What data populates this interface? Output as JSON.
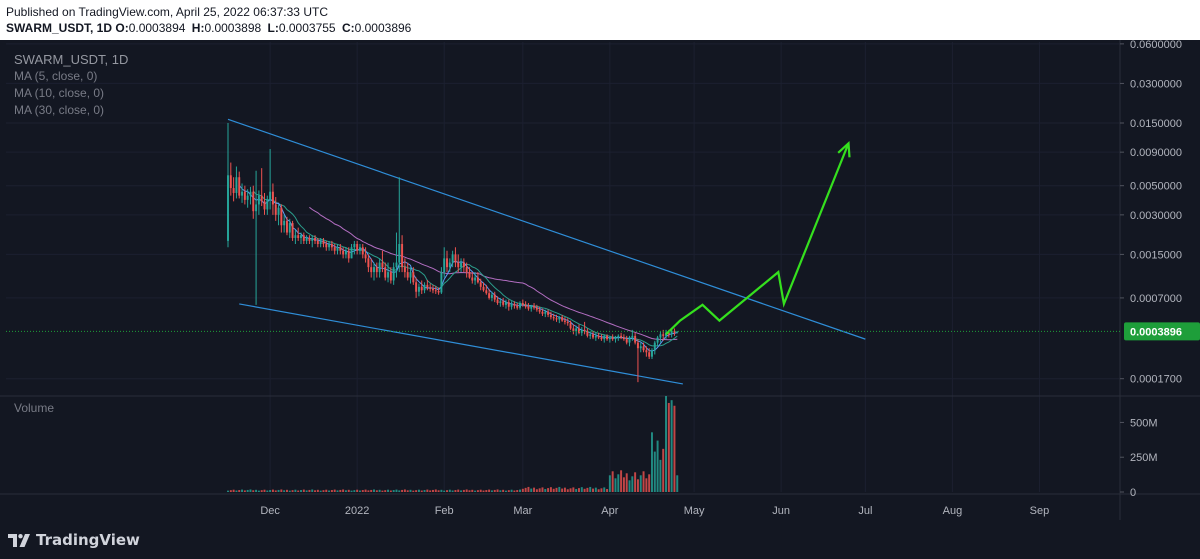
{
  "header": {
    "published": "Published on TradingView.com, April 25, 2022 06:37:33 UTC",
    "symbol": "SWARM_USDT, 1D",
    "o_label": "O:",
    "o": "0.0003894",
    "h_label": "H:",
    "h": "0.0003898",
    "l_label": "L:",
    "l": "0.0003755",
    "c_label": "C:",
    "c": "0.0003896"
  },
  "legend": {
    "title": "SWARM_USDT, 1D",
    "ma1": "MA (5, close, 0)",
    "ma2": "MA (10, close, 0)",
    "ma3": "MA (30, close, 0)",
    "volume": "Volume"
  },
  "footer": {
    "brand": "TradingView"
  },
  "colors": {
    "up": "#26a69a",
    "down": "#ef5350",
    "ma5": "#5b9cf6",
    "ma10": "#2b9e8c",
    "ma30": "#b36ec2",
    "trendline": "#2f8ed8",
    "projection": "#35e01e",
    "price_tag": "#1e9e3a"
  },
  "chart_data": {
    "type": "candlestick",
    "price_axis": {
      "scale": "log",
      "ticks": [
        "0.0600000",
        "0.0300000",
        "0.0150000",
        "0.0090000",
        "0.0050000",
        "0.0030000",
        "0.0015000",
        "0.0007000",
        "0.0003896",
        "0.0001700"
      ],
      "range": [
        0.00013,
        0.062
      ]
    },
    "time_axis": {
      "ticks": [
        "Dec",
        "2022",
        "Feb",
        "Mar",
        "Apr",
        "May",
        "Jun",
        "Jul",
        "Aug",
        "Sep"
      ],
      "range": [
        "2021-11-16",
        "2022-09-19"
      ]
    },
    "volume_axis": {
      "ticks": [
        "500M",
        "250M",
        "0"
      ],
      "max": 690
    },
    "last_price": "0.0003896",
    "candles": [
      [
        "2021-11-16",
        0.0019,
        0.015,
        0.0017,
        0.006
      ],
      [
        "2021-11-17",
        0.006,
        0.0075,
        0.0042,
        0.0048
      ],
      [
        "2021-11-18",
        0.0048,
        0.0058,
        0.0038,
        0.0044
      ],
      [
        "2021-11-19",
        0.0044,
        0.007,
        0.004,
        0.0058
      ],
      [
        "2021-11-20",
        0.0058,
        0.0064,
        0.004,
        0.0042
      ],
      [
        "2021-11-21",
        0.0042,
        0.0052,
        0.0037,
        0.0045
      ],
      [
        "2021-11-22",
        0.0045,
        0.005,
        0.0036,
        0.0039
      ],
      [
        "2021-11-23",
        0.0039,
        0.0047,
        0.0034,
        0.0042
      ],
      [
        "2021-11-24",
        0.0042,
        0.0049,
        0.0036,
        0.0045
      ],
      [
        "2021-11-25",
        0.0045,
        0.005,
        0.0028,
        0.0032
      ],
      [
        "2021-11-26",
        0.0032,
        0.0065,
        0.00062,
        0.0036
      ],
      [
        "2021-11-27",
        0.0036,
        0.0046,
        0.003,
        0.0042
      ],
      [
        "2021-11-28",
        0.0042,
        0.0068,
        0.0035,
        0.0038
      ],
      [
        "2021-11-29",
        0.0038,
        0.0044,
        0.003,
        0.0033
      ],
      [
        "2021-11-30",
        0.0033,
        0.0042,
        0.003,
        0.0039
      ],
      [
        "2021-12-01",
        0.0039,
        0.0095,
        0.0033,
        0.0045
      ],
      [
        "2021-12-02",
        0.0045,
        0.0052,
        0.003,
        0.0036
      ],
      [
        "2021-12-03",
        0.0036,
        0.0041,
        0.0027,
        0.003
      ],
      [
        "2021-12-04",
        0.003,
        0.0036,
        0.0025,
        0.0034
      ],
      [
        "2021-12-05",
        0.0034,
        0.0036,
        0.0022,
        0.0025
      ],
      [
        "2021-12-06",
        0.0025,
        0.003,
        0.0022,
        0.0027
      ],
      [
        "2021-12-07",
        0.0027,
        0.0029,
        0.0021,
        0.0022
      ],
      [
        "2021-12-08",
        0.0022,
        0.0028,
        0.002,
        0.0026
      ],
      [
        "2021-12-09",
        0.0026,
        0.0027,
        0.0019,
        0.002
      ],
      [
        "2021-12-10",
        0.002,
        0.0023,
        0.0018,
        0.0021
      ],
      [
        "2021-12-11",
        0.0021,
        0.0024,
        0.0019,
        0.002
      ],
      [
        "2021-12-12",
        0.002,
        0.0022,
        0.0018,
        0.0021
      ],
      [
        "2021-12-13",
        0.0021,
        0.0022,
        0.0018,
        0.0019
      ],
      [
        "2021-12-14",
        0.0019,
        0.0021,
        0.0018,
        0.002
      ],
      [
        "2021-12-15",
        0.002,
        0.0021,
        0.0018,
        0.0019
      ],
      [
        "2021-12-16",
        0.0019,
        0.0021,
        0.0017,
        0.002
      ],
      [
        "2021-12-17",
        0.002,
        0.0021,
        0.0018,
        0.0019
      ],
      [
        "2021-12-18",
        0.0019,
        0.002,
        0.0017,
        0.0018
      ],
      [
        "2021-12-19",
        0.0018,
        0.002,
        0.0017,
        0.0019
      ],
      [
        "2021-12-20",
        0.0019,
        0.002,
        0.0017,
        0.0018
      ],
      [
        "2021-12-21",
        0.0018,
        0.0019,
        0.0016,
        0.0017
      ],
      [
        "2021-12-22",
        0.0017,
        0.0019,
        0.0016,
        0.0018
      ],
      [
        "2021-12-23",
        0.0018,
        0.0019,
        0.0016,
        0.0017
      ],
      [
        "2021-12-24",
        0.0017,
        0.0018,
        0.0015,
        0.0016
      ],
      [
        "2021-12-25",
        0.0016,
        0.0018,
        0.0015,
        0.0017
      ],
      [
        "2021-12-26",
        0.0017,
        0.0018,
        0.0015,
        0.0016
      ],
      [
        "2021-12-27",
        0.0016,
        0.0017,
        0.0014,
        0.0015
      ],
      [
        "2021-12-28",
        0.0015,
        0.0017,
        0.0014,
        0.0016
      ],
      [
        "2021-12-29",
        0.0016,
        0.0017,
        0.0013,
        0.0014
      ],
      [
        "2021-12-30",
        0.0014,
        0.0018,
        0.0014,
        0.0017
      ],
      [
        "2021-12-31",
        0.0017,
        0.0019,
        0.0015,
        0.0018
      ],
      [
        "2022-01-01",
        0.0018,
        0.0019,
        0.0015,
        0.0016
      ],
      [
        "2022-01-02",
        0.0016,
        0.0018,
        0.0015,
        0.0017
      ],
      [
        "2022-01-03",
        0.0017,
        0.0018,
        0.0014,
        0.0015
      ],
      [
        "2022-01-04",
        0.0015,
        0.0017,
        0.0013,
        0.0014
      ],
      [
        "2022-01-05",
        0.0014,
        0.0015,
        0.0011,
        0.0012
      ],
      [
        "2022-01-06",
        0.0012,
        0.0014,
        0.001,
        0.0011
      ],
      [
        "2022-01-07",
        0.0011,
        0.0013,
        0.00095,
        0.0012
      ],
      [
        "2022-01-08",
        0.0012,
        0.0013,
        0.001,
        0.0011
      ],
      [
        "2022-01-09",
        0.0011,
        0.0014,
        0.001,
        0.0013
      ],
      [
        "2022-01-10",
        0.0013,
        0.0016,
        0.0011,
        0.0012
      ],
      [
        "2022-01-11",
        0.0012,
        0.0013,
        0.00095,
        0.001
      ],
      [
        "2022-01-12",
        0.001,
        0.0013,
        0.00092,
        0.0011
      ],
      [
        "2022-01-13",
        0.0011,
        0.0012,
        0.0009,
        0.00095
      ],
      [
        "2022-01-14",
        0.00095,
        0.0013,
        0.00088,
        0.0012
      ],
      [
        "2022-01-15",
        0.0012,
        0.0022,
        0.001,
        0.0013
      ],
      [
        "2022-01-16",
        0.0013,
        0.0058,
        0.0011,
        0.0018
      ],
      [
        "2022-01-17",
        0.0018,
        0.0021,
        0.0011,
        0.0012
      ],
      [
        "2022-01-18",
        0.0012,
        0.0014,
        0.001,
        0.0011
      ],
      [
        "2022-01-19",
        0.0011,
        0.0013,
        0.00095,
        0.001
      ],
      [
        "2022-01-20",
        0.001,
        0.0012,
        0.0009,
        0.0011
      ],
      [
        "2022-01-21",
        0.0011,
        0.0012,
        0.00088,
        0.00092
      ],
      [
        "2022-01-22",
        0.00092,
        0.001,
        0.0007,
        0.00078
      ],
      [
        "2022-01-23",
        0.00078,
        0.0009,
        0.00072,
        0.00085
      ],
      [
        "2022-01-24",
        0.00085,
        0.00095,
        0.00075,
        0.0008
      ],
      [
        "2022-01-25",
        0.0008,
        0.00092,
        0.00076,
        0.00088
      ],
      [
        "2022-01-26",
        0.00088,
        0.00096,
        0.0008,
        0.00084
      ],
      [
        "2022-01-27",
        0.00084,
        0.0009,
        0.00078,
        0.00082
      ],
      [
        "2022-01-28",
        0.00082,
        0.00088,
        0.00076,
        0.0008
      ],
      [
        "2022-01-29",
        0.0008,
        0.00086,
        0.00075,
        0.00079
      ],
      [
        "2022-01-30",
        0.00079,
        0.00084,
        0.00074,
        0.00077
      ],
      [
        "2022-01-31",
        0.00077,
        0.0012,
        0.00075,
        0.0011
      ],
      [
        "2022-02-01",
        0.0011,
        0.0017,
        0.001,
        0.0014
      ],
      [
        "2022-02-02",
        0.0014,
        0.0016,
        0.0011,
        0.0012
      ],
      [
        "2022-02-03",
        0.0012,
        0.0014,
        0.0011,
        0.0013
      ],
      [
        "2022-02-04",
        0.0013,
        0.0016,
        0.0012,
        0.0015
      ],
      [
        "2022-02-05",
        0.0015,
        0.0017,
        0.0012,
        0.0013
      ],
      [
        "2022-02-06",
        0.0013,
        0.0015,
        0.0011,
        0.0012
      ],
      [
        "2022-02-07",
        0.0012,
        0.0014,
        0.0011,
        0.0013
      ],
      [
        "2022-02-08",
        0.0013,
        0.0014,
        0.0011,
        0.0012
      ],
      [
        "2022-02-09",
        0.0012,
        0.0013,
        0.001,
        0.0011
      ],
      [
        "2022-02-10",
        0.0011,
        0.0012,
        0.00098,
        0.001
      ],
      [
        "2022-02-11",
        0.001,
        0.0011,
        0.0009,
        0.00095
      ],
      [
        "2022-02-12",
        0.00095,
        0.0011,
        0.00088,
        0.001
      ],
      [
        "2022-02-13",
        0.001,
        0.0011,
        0.0009,
        0.00092
      ],
      [
        "2022-02-14",
        0.00092,
        0.00098,
        0.0008,
        0.00085
      ],
      [
        "2022-02-15",
        0.00085,
        0.00092,
        0.00078,
        0.0008
      ],
      [
        "2022-02-16",
        0.0008,
        0.00088,
        0.00074,
        0.00076
      ],
      [
        "2022-02-17",
        0.00076,
        0.00082,
        0.00068,
        0.0007
      ],
      [
        "2022-02-18",
        0.0007,
        0.00078,
        0.00066,
        0.00074
      ],
      [
        "2022-02-19",
        0.00074,
        0.00078,
        0.00065,
        0.00068
      ],
      [
        "2022-02-20",
        0.00068,
        0.00072,
        0.00062,
        0.00064
      ],
      [
        "2022-02-21",
        0.00064,
        0.0007,
        0.0006,
        0.00066
      ],
      [
        "2022-02-22",
        0.00066,
        0.0007,
        0.0006,
        0.00062
      ],
      [
        "2022-02-23",
        0.00062,
        0.00068,
        0.00058,
        0.00065
      ],
      [
        "2022-02-24",
        0.00065,
        0.00068,
        0.00056,
        0.0006
      ],
      [
        "2022-02-25",
        0.0006,
        0.00066,
        0.00057,
        0.00063
      ],
      [
        "2022-02-26",
        0.00063,
        0.00066,
        0.00058,
        0.00061
      ],
      [
        "2022-02-27",
        0.00061,
        0.00064,
        0.00057,
        0.00059
      ],
      [
        "2022-02-28",
        0.00059,
        0.00066,
        0.00057,
        0.00064
      ],
      [
        "2022-03-01",
        0.00064,
        0.00068,
        0.0006,
        0.00062
      ],
      [
        "2022-03-02",
        0.00062,
        0.00066,
        0.00058,
        0.0006
      ],
      [
        "2022-03-03",
        0.0006,
        0.00064,
        0.00056,
        0.00058
      ],
      [
        "2022-03-04",
        0.00058,
        0.00062,
        0.00055,
        0.00061
      ],
      [
        "2022-03-05",
        0.00061,
        0.00064,
        0.00057,
        0.00059
      ],
      [
        "2022-03-06",
        0.00059,
        0.00062,
        0.00055,
        0.00057
      ],
      [
        "2022-03-07",
        0.00057,
        0.0006,
        0.00053,
        0.00055
      ],
      [
        "2022-03-08",
        0.00055,
        0.00058,
        0.00051,
        0.00053
      ],
      [
        "2022-03-09",
        0.00053,
        0.00057,
        0.0005,
        0.00055
      ],
      [
        "2022-03-10",
        0.00055,
        0.00057,
        0.0005,
        0.00052
      ],
      [
        "2022-03-11",
        0.00052,
        0.00055,
        0.00048,
        0.0005
      ],
      [
        "2022-03-12",
        0.0005,
        0.00053,
        0.00047,
        0.00049
      ],
      [
        "2022-03-13",
        0.00049,
        0.00052,
        0.00046,
        0.00048
      ],
      [
        "2022-03-14",
        0.00048,
        0.00051,
        0.00045,
        0.0005
      ],
      [
        "2022-03-15",
        0.0005,
        0.00052,
        0.00046,
        0.00047
      ],
      [
        "2022-03-16",
        0.00047,
        0.0005,
        0.00044,
        0.00046
      ],
      [
        "2022-03-17",
        0.00046,
        0.00049,
        0.00043,
        0.00045
      ],
      [
        "2022-03-18",
        0.00045,
        0.00047,
        0.0004,
        0.00041
      ],
      [
        "2022-03-19",
        0.00041,
        0.00044,
        0.00037,
        0.00039
      ],
      [
        "2022-03-20",
        0.00039,
        0.00043,
        0.00036,
        0.00041
      ],
      [
        "2022-03-21",
        0.00041,
        0.00044,
        0.00037,
        0.00038
      ],
      [
        "2022-03-22",
        0.00038,
        0.00042,
        0.00036,
        0.0004
      ],
      [
        "2022-03-23",
        0.0004,
        0.00046,
        0.00037,
        0.00039
      ],
      [
        "2022-03-24",
        0.00039,
        0.00041,
        0.00035,
        0.00036
      ],
      [
        "2022-03-25",
        0.00036,
        0.00039,
        0.00034,
        0.00037
      ],
      [
        "2022-03-26",
        0.00037,
        0.00039,
        0.00034,
        0.00035
      ],
      [
        "2022-03-27",
        0.00035,
        0.00038,
        0.00033,
        0.00036
      ],
      [
        "2022-03-28",
        0.00036,
        0.00038,
        0.00034,
        0.00035
      ],
      [
        "2022-03-29",
        0.00035,
        0.00037,
        0.00033,
        0.00034
      ],
      [
        "2022-03-30",
        0.00034,
        0.00037,
        0.00032,
        0.00036
      ],
      [
        "2022-03-31",
        0.00036,
        0.00037,
        0.00033,
        0.00034
      ],
      [
        "2022-04-01",
        0.00034,
        0.00036,
        0.00032,
        0.00035
      ],
      [
        "2022-04-02",
        0.00035,
        0.00037,
        0.00033,
        0.00034
      ],
      [
        "2022-04-03",
        0.00034,
        0.00036,
        0.00032,
        0.00035
      ],
      [
        "2022-04-04",
        0.00035,
        0.00037,
        0.00033,
        0.00036
      ],
      [
        "2022-04-05",
        0.00036,
        0.00038,
        0.00034,
        0.00035
      ],
      [
        "2022-04-06",
        0.00035,
        0.00037,
        0.00033,
        0.00034
      ],
      [
        "2022-04-07",
        0.00034,
        0.00036,
        0.00031,
        0.00032
      ],
      [
        "2022-04-08",
        0.00032,
        0.00036,
        0.0003,
        0.00035
      ],
      [
        "2022-04-09",
        0.00035,
        0.0004,
        0.00033,
        0.00036
      ],
      [
        "2022-04-10",
        0.00036,
        0.00038,
        0.00031,
        0.00032
      ],
      [
        "2022-04-11",
        0.00032,
        0.00034,
        0.00016,
        0.00029
      ],
      [
        "2022-04-12",
        0.00029,
        0.00032,
        0.00027,
        0.0003
      ],
      [
        "2022-04-13",
        0.0003,
        0.00032,
        0.00027,
        0.00028
      ],
      [
        "2022-04-14",
        0.00028,
        0.0003,
        0.00025,
        0.00027
      ],
      [
        "2022-04-15",
        0.00027,
        0.00029,
        0.00024,
        0.00025
      ],
      [
        "2022-04-16",
        0.00025,
        0.00029,
        0.00024,
        0.00028
      ],
      [
        "2022-04-17",
        0.00028,
        0.00033,
        0.00026,
        0.00032
      ],
      [
        "2022-04-18",
        0.00032,
        0.00036,
        0.0003,
        0.00035
      ],
      [
        "2022-04-19",
        0.00035,
        0.00039,
        0.00032,
        0.00037
      ],
      [
        "2022-04-20",
        0.00037,
        0.0004,
        0.00033,
        0.00036
      ],
      [
        "2022-04-21",
        0.00036,
        0.0004,
        0.00034,
        0.00038
      ],
      [
        "2022-04-22",
        0.00038,
        0.0004,
        0.00035,
        0.00037
      ],
      [
        "2022-04-23",
        0.00037,
        0.0004,
        0.00035,
        0.00039
      ],
      [
        "2022-04-24",
        0.00039,
        0.00041,
        0.00036,
        0.00038
      ],
      [
        "2022-04-25",
        0.0003894,
        0.0003898,
        0.0003755,
        0.0003896
      ]
    ],
    "volume": [
      {
        "from": "2021-11-16",
        "to": "2022-02-28",
        "level": 14
      },
      {
        "from": "2022-03-01",
        "to": "2022-03-31",
        "level": 28
      },
      {
        "from": "2022-04-01",
        "to": "2022-04-15",
        "level": 120
      },
      {
        "from": "2022-04-16",
        "to": "2022-04-20",
        "level": 330
      },
      {
        "date": "2022-04-21",
        "level": 690
      },
      {
        "date": "2022-04-22",
        "level": 640
      },
      {
        "date": "2022-04-23",
        "level": 660
      },
      {
        "date": "2022-04-24",
        "level": 620
      },
      {
        "date": "2022-04-25",
        "level": 120
      }
    ],
    "trendlines": [
      {
        "name": "upper",
        "from": [
          "2021-11-16",
          0.016
        ],
        "to": [
          "2022-07-01",
          0.00034
        ]
      },
      {
        "name": "lower",
        "from": [
          "2021-11-20",
          0.00063
        ],
        "to": [
          "2022-04-27",
          0.000155
        ]
      }
    ],
    "projection": [
      [
        "2022-04-26",
        0.00047
      ],
      [
        "2022-05-04",
        0.00062
      ],
      [
        "2022-05-10",
        0.00047
      ],
      [
        "2022-05-31",
        0.0011
      ],
      [
        "2022-06-02",
        0.00063
      ],
      [
        "2022-06-25",
        0.0105
      ]
    ]
  }
}
